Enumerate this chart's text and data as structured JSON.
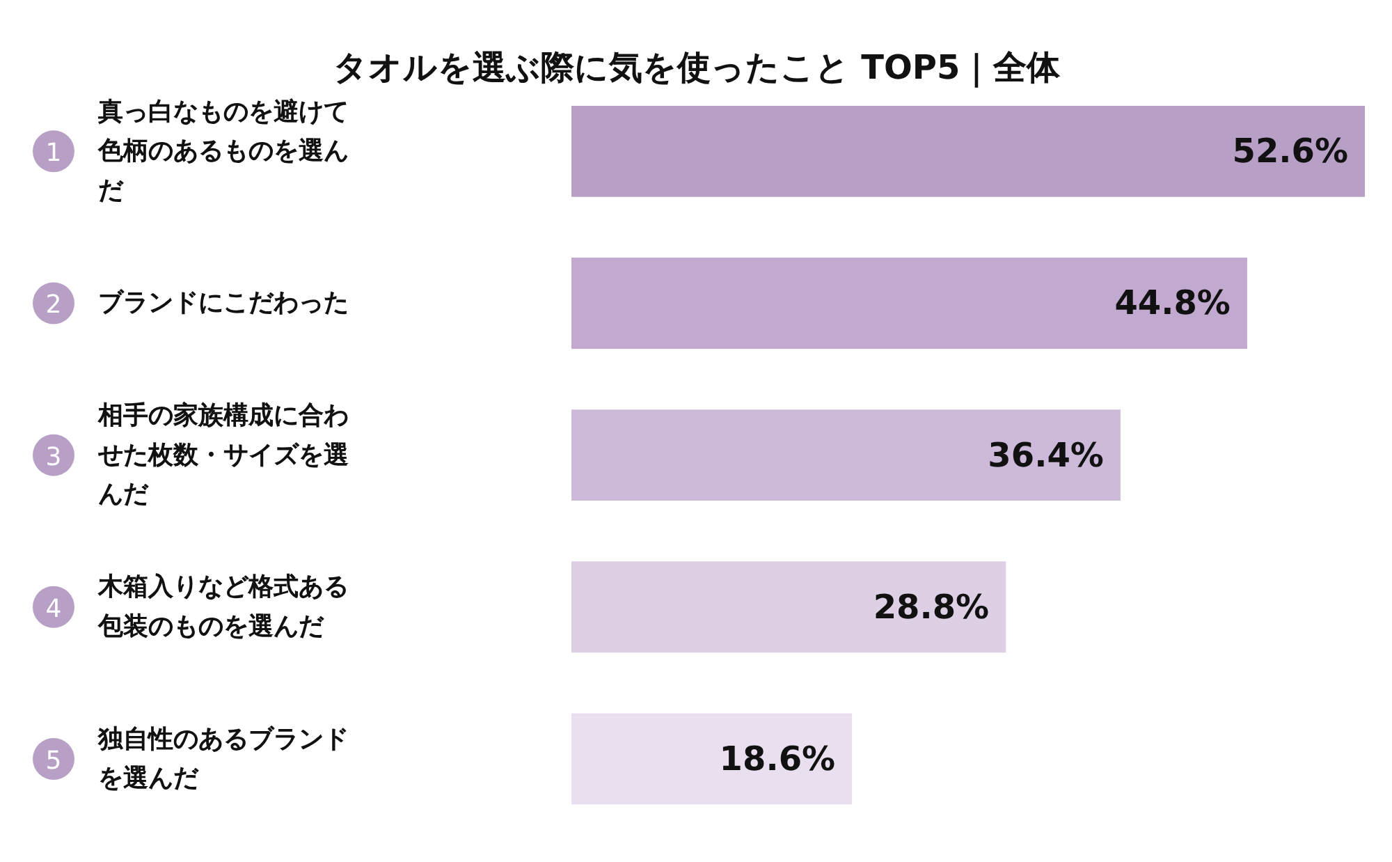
{
  "chart_data": {
    "type": "bar",
    "orientation": "horizontal",
    "title": "タオルを選ぶ際に気を使ったこと TOP5｜全体",
    "categories": [
      "真っ白なものを避けて色柄のあるものを選んだ",
      "ブランドにこだわった",
      "相手の家族構成に合わせた枚数・サイズを選んだ",
      "木箱入りなど格式ある包装のものを選んだ",
      "独自性のあるブランドを選んだ"
    ],
    "values": [
      52.6,
      44.8,
      36.4,
      28.8,
      18.6
    ],
    "colors": [
      "#b89fc6",
      "#c2a9cf",
      "#cdb9d9",
      "#ddd0e4",
      "#e9dfee"
    ],
    "value_labels": [
      "52.6%",
      "44.8%",
      "36.4%",
      "28.8%",
      "18.6%"
    ],
    "annotations": [
      "1",
      "2",
      "3",
      "4",
      "5"
    ]
  }
}
